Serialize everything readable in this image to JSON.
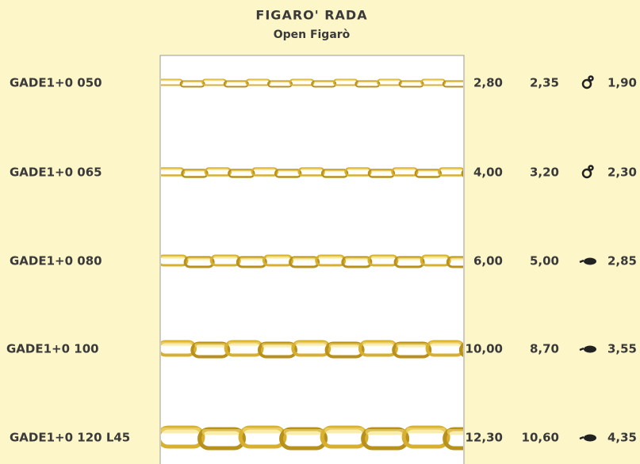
{
  "header": {
    "title": "FIGARO' RADA",
    "subtitle": "Open Figarò"
  },
  "rows": [
    {
      "code": "GADE1+0 050",
      "values": [
        "2,80",
        "2,35",
        "1,90"
      ]
    },
    {
      "code": "GADE1+0 065",
      "values": [
        "4,00",
        "3,20",
        "2,30"
      ]
    },
    {
      "code": "GADE1+0 080",
      "values": [
        "6,00",
        "5,00",
        "2,85"
      ]
    },
    {
      "code": "GADE1+0 100",
      "values": [
        "10,00",
        "8,70",
        "3,55"
      ]
    },
    {
      "code": "GADE1+0 120 L45",
      "values": [
        "12,30",
        "10,60",
        "4,35"
      ]
    }
  ]
}
